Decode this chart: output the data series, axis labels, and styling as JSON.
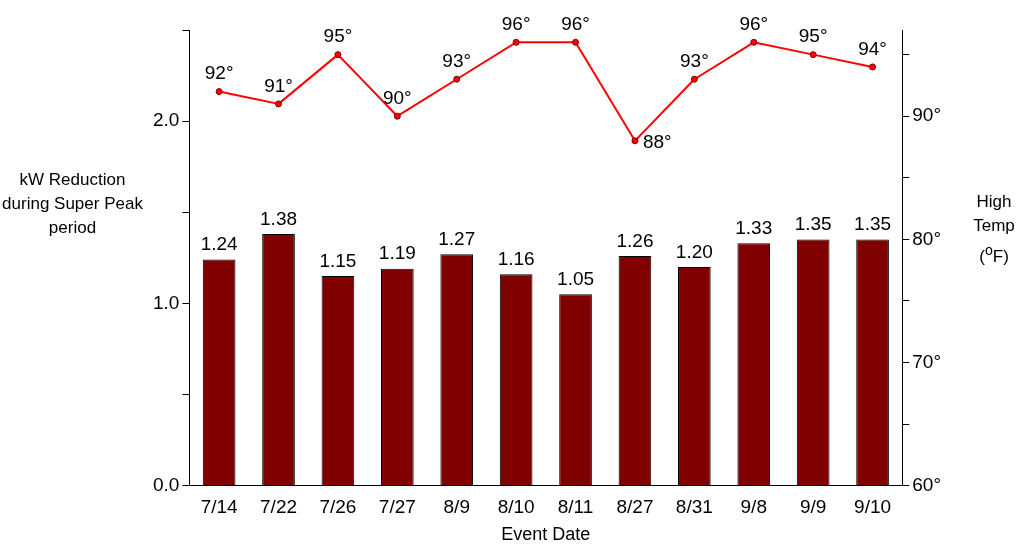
{
  "chart_data": {
    "type": "bar",
    "xlabel": "Event Date",
    "ylabel": "kW Reduction during Super Peak period",
    "y2label": "High Temp ($^{o}$F)",
    "categories": [
      "7/14",
      "7/22",
      "7/26",
      "7/27",
      "8/9",
      "8/10",
      "8/11",
      "8/27",
      "8/31",
      "9/8",
      "9/9",
      "9/10"
    ],
    "series": [
      {
        "color": "#800000",
        "values": [
          1.24,
          1.38,
          1.15,
          1.19,
          1.27,
          1.16,
          1.05,
          1.26,
          1.2,
          1.33,
          1.35,
          1.35
        ],
        "value_labels": [
          "1.24",
          "1.38",
          "1.15",
          "1.19",
          "1.27",
          "1.16",
          "1.05",
          "1.26",
          "1.20",
          "1.33",
          "1.35",
          "1.35"
        ]
      },
      {
        "type": "line",
        "axis": "y2",
        "color": "#ff0000",
        "marker": "circle",
        "values": [
          92,
          91,
          95,
          90,
          93,
          96,
          96,
          88,
          93,
          96,
          95,
          94
        ],
        "value_labels": [
          "92°",
          "91°",
          "95°",
          "90°",
          "93°",
          "96°",
          "96°",
          "88°",
          "93°",
          "96°",
          "95°",
          "94°"
        ]
      }
    ],
    "ylim": [
      0,
      2.5
    ],
    "yticks": [
      {
        "value": 0,
        "label": "0.0"
      },
      {
        "value": 0.5,
        "label": null
      },
      {
        "value": 1,
        "label": "1.0"
      },
      {
        "value": 1.5,
        "label": null
      },
      {
        "value": 2,
        "label": "2.0"
      },
      {
        "value": 2.5,
        "label": null
      }
    ],
    "y2lim": [
      60,
      97
    ],
    "y2ticks": [
      {
        "value": 60,
        "label": "60°"
      },
      {
        "value": 65,
        "label": null
      },
      {
        "value": 70,
        "label": "70°"
      },
      {
        "value": 75,
        "label": null
      },
      {
        "value": 80,
        "label": "80°"
      },
      {
        "value": 85,
        "label": null
      },
      {
        "value": 90,
        "label": "90°"
      },
      {
        "value": 95,
        "label": null
      }
    ],
    "grid": false,
    "legend": false
  }
}
